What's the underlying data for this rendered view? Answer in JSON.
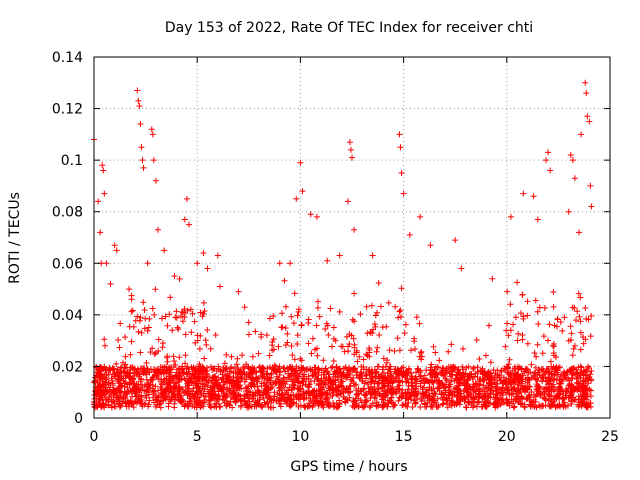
{
  "chart_data": {
    "type": "scatter",
    "title": "Day 153 of 2022, Rate Of TEC Index for receiver chti",
    "xlabel": "GPS time / hours",
    "ylabel": "ROTI / TECUs",
    "xlim": [
      0,
      25
    ],
    "ylim": [
      0,
      0.14
    ],
    "x_ticks": [
      0,
      5,
      10,
      15,
      20,
      25
    ],
    "x_tick_labels": [
      "0",
      "5",
      "10",
      "15",
      "20",
      "25"
    ],
    "y_ticks": [
      0,
      0.02,
      0.04,
      0.06,
      0.08,
      0.1,
      0.12,
      0.14
    ],
    "y_tick_labels": [
      "0",
      "0.02",
      "0.04",
      "0.06",
      "0.08",
      "0.1",
      "0.12",
      "0.14"
    ],
    "grid": true,
    "marker": "+",
    "marker_color": "#ff0000",
    "series": [
      {
        "name": "ROTI",
        "points": [
          [
            0.0,
            0.108
          ],
          [
            0.2,
            0.084
          ],
          [
            0.3,
            0.072
          ],
          [
            0.35,
            0.06
          ],
          [
            0.4,
            0.098
          ],
          [
            0.45,
            0.096
          ],
          [
            0.5,
            0.087
          ],
          [
            0.6,
            0.06
          ],
          [
            0.8,
            0.052
          ],
          [
            1.0,
            0.067
          ],
          [
            1.1,
            0.065
          ],
          [
            1.7,
            0.05
          ],
          [
            2.1,
            0.127
          ],
          [
            2.15,
            0.123
          ],
          [
            2.2,
            0.121
          ],
          [
            2.25,
            0.114
          ],
          [
            2.3,
            0.105
          ],
          [
            2.35,
            0.1
          ],
          [
            2.4,
            0.097
          ],
          [
            2.6,
            0.06
          ],
          [
            2.8,
            0.112
          ],
          [
            2.85,
            0.11
          ],
          [
            2.9,
            0.1
          ],
          [
            3.0,
            0.092
          ],
          [
            3.1,
            0.073
          ],
          [
            3.4,
            0.065
          ],
          [
            3.9,
            0.055
          ],
          [
            4.4,
            0.077
          ],
          [
            4.5,
            0.085
          ],
          [
            4.6,
            0.075
          ],
          [
            5.0,
            0.06
          ],
          [
            5.3,
            0.064
          ],
          [
            5.5,
            0.058
          ],
          [
            6.0,
            0.063
          ],
          [
            6.1,
            0.051
          ],
          [
            7.0,
            0.049
          ],
          [
            7.3,
            0.043
          ],
          [
            9.0,
            0.06
          ],
          [
            9.5,
            0.06
          ],
          [
            9.8,
            0.085
          ],
          [
            10.0,
            0.099
          ],
          [
            10.1,
            0.088
          ],
          [
            10.5,
            0.079
          ],
          [
            10.8,
            0.078
          ],
          [
            11.3,
            0.061
          ],
          [
            11.9,
            0.063
          ],
          [
            12.3,
            0.084
          ],
          [
            12.4,
            0.107
          ],
          [
            12.45,
            0.104
          ],
          [
            12.5,
            0.101
          ],
          [
            12.6,
            0.073
          ],
          [
            13.5,
            0.063
          ],
          [
            14.8,
            0.11
          ],
          [
            14.85,
            0.105
          ],
          [
            14.9,
            0.095
          ],
          [
            15.0,
            0.087
          ],
          [
            15.3,
            0.071
          ],
          [
            15.8,
            0.078
          ],
          [
            16.3,
            0.067
          ],
          [
            17.5,
            0.069
          ],
          [
            17.8,
            0.058
          ],
          [
            19.3,
            0.054
          ],
          [
            20.2,
            0.078
          ],
          [
            20.8,
            0.087
          ],
          [
            21.3,
            0.086
          ],
          [
            21.5,
            0.077
          ],
          [
            21.9,
            0.1
          ],
          [
            22.0,
            0.103
          ],
          [
            22.1,
            0.096
          ],
          [
            23.0,
            0.08
          ],
          [
            23.1,
            0.102
          ],
          [
            23.2,
            0.1
          ],
          [
            23.3,
            0.093
          ],
          [
            23.5,
            0.072
          ],
          [
            23.6,
            0.11
          ],
          [
            23.8,
            0.13
          ],
          [
            23.85,
            0.126
          ],
          [
            23.9,
            0.117
          ],
          [
            24.0,
            0.115
          ],
          [
            24.05,
            0.09
          ],
          [
            24.1,
            0.082
          ]
        ]
      }
    ]
  }
}
